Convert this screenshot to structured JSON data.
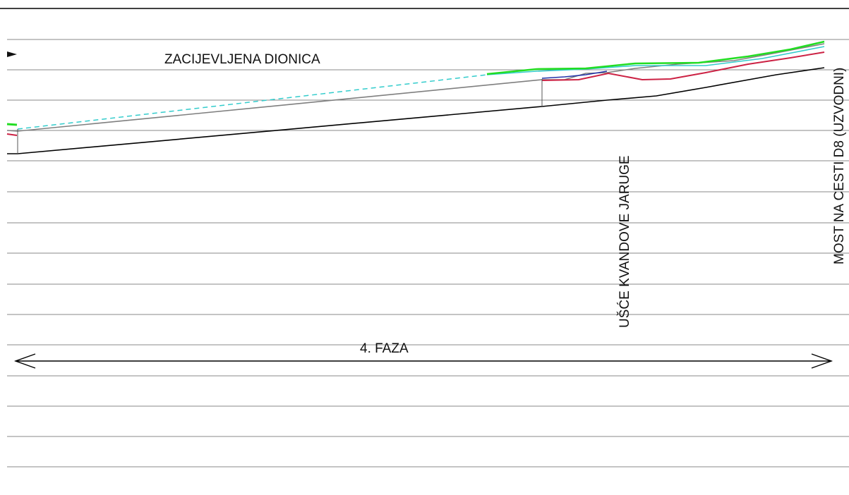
{
  "labels": {
    "culverted_section": "ZACIJEVLJENA DIONICA",
    "confluence": "UŠĆE KVANDOVE JARUGE",
    "bridge": "MOST NA CESTI D8 (UZVODNI)",
    "phase": "4. FAZA"
  },
  "colors": {
    "background": "#ffffff",
    "grid": "#8a8a8a",
    "bed": "#000000",
    "design_line": "#7f7f7f",
    "water_green": "#22dd22",
    "water_cyan": "#33cccc",
    "water_red": "#cc2244",
    "water_blue": "#2233aa"
  }
}
